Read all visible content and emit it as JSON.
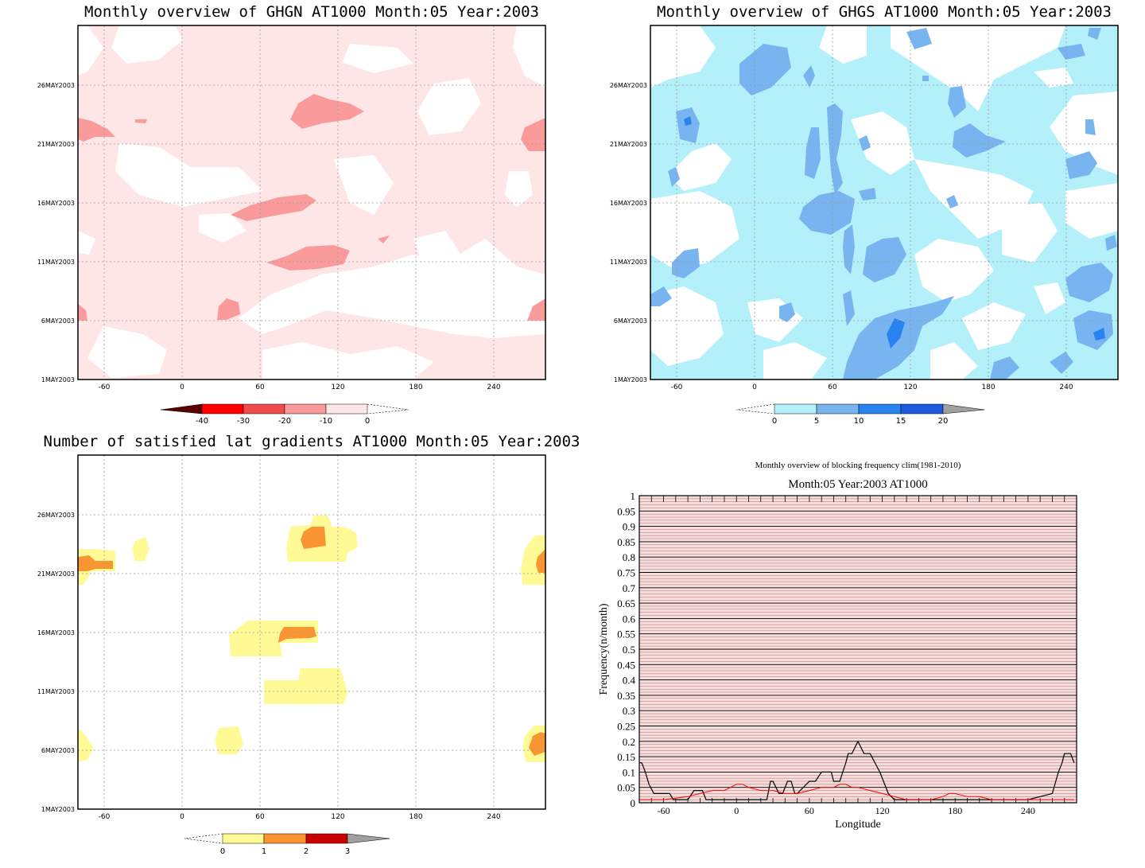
{
  "chart_data": [
    {
      "type": "heatmap",
      "title": "Monthly overview of GHGN AT1000 Month:05 Year:2003",
      "x_ticks": [
        "-60",
        "0",
        "60",
        "120",
        "180",
        "240"
      ],
      "y_ticks": [
        "1MAY2003",
        "6MAY2003",
        "11MAY2003",
        "16MAY2003",
        "21MAY2003",
        "26MAY2003"
      ],
      "colorbar": {
        "labels": [
          "-40",
          "-30",
          "-20",
          "-10",
          "0"
        ],
        "colors": [
          "#5a0000",
          "#ff0000",
          "#ef4b4b",
          "#fa9a9a",
          "#ffe6e6"
        ]
      },
      "regions": [
        {
          "level": "0 to -10",
          "color": "#ffe6e6"
        },
        {
          "level": "-10 to -20",
          "color": "#fa9a9a"
        }
      ]
    },
    {
      "type": "heatmap",
      "title": "Monthly overview of GHGS AT1000 Month:05 Year:2003",
      "x_ticks": [
        "-60",
        "0",
        "60",
        "120",
        "180",
        "240"
      ],
      "y_ticks": [
        "1MAY2003",
        "6MAY2003",
        "11MAY2003",
        "16MAY2003",
        "21MAY2003",
        "26MAY2003"
      ],
      "colorbar": {
        "labels": [
          "0",
          "5",
          "10",
          "15",
          "20"
        ],
        "colors": [
          "#b4f0fa",
          "#78b4f0",
          "#2882f0",
          "#1e5adc",
          "#a0a0a0"
        ]
      },
      "regions": [
        {
          "level": "0 to 5",
          "color": "#b4f0fa"
        },
        {
          "level": "5 to 10",
          "color": "#78b4f0"
        },
        {
          "level": "10 to 15",
          "color": "#2882f0"
        }
      ]
    },
    {
      "type": "heatmap",
      "title": "Number of satisfied lat gradients AT1000 Month:05 Year:2003",
      "x_ticks": [
        "-60",
        "0",
        "60",
        "120",
        "180",
        "240"
      ],
      "y_ticks": [
        "1MAY2003",
        "6MAY2003",
        "11MAY2003",
        "16MAY2003",
        "21MAY2003",
        "26MAY2003"
      ],
      "colorbar": {
        "labels": [
          "0",
          "1",
          "2",
          "3"
        ],
        "colors": [
          "#fffa96",
          "#fa9632",
          "#c80000",
          "#a0a0a0"
        ]
      },
      "regions": [
        {
          "level": "0 to 1",
          "color": "#fffa96"
        },
        {
          "level": "1 to 2",
          "color": "#fa9632"
        }
      ]
    },
    {
      "type": "line",
      "title": "Monthly overview of blocking frequency clim(1981-2010)",
      "subtitle": "Month:05 Year:2003  AT1000",
      "xlabel": "Longitude",
      "ylabel": "Frequency(n/month)",
      "xlim": [
        -80,
        280
      ],
      "ylim": [
        0,
        1
      ],
      "x_ticks": [
        "-60",
        "0",
        "60",
        "120",
        "180",
        "240"
      ],
      "y_ticks": [
        "0",
        "0.05",
        "0.1",
        "0.15",
        "0.2",
        "0.25",
        "0.3",
        "0.35",
        "0.4",
        "0.45",
        "0.5",
        "0.55",
        "0.6",
        "0.65",
        "0.7",
        "0.75",
        "0.8",
        "0.85",
        "0.9",
        "0.95",
        "1"
      ],
      "series": [
        {
          "color": "#000000",
          "x": [
            -80,
            -78,
            -75,
            -72,
            -68,
            -60,
            -55,
            -52,
            -40,
            -35,
            -30,
            -28,
            -25,
            -20,
            0,
            20,
            25,
            28,
            30,
            35,
            38,
            42,
            45,
            48,
            50,
            60,
            62,
            65,
            70,
            75,
            78,
            80,
            85,
            90,
            92,
            95,
            100,
            105,
            110,
            118,
            125,
            130,
            140,
            150,
            200,
            240,
            260,
            265,
            268,
            270,
            275,
            278
          ],
          "y": [
            0.13,
            0.13,
            0.1,
            0.06,
            0.03,
            0.03,
            0.03,
            0.01,
            0.01,
            0.04,
            0.04,
            0.04,
            0.01,
            0.01,
            0.01,
            0.01,
            0.01,
            0.07,
            0.07,
            0.03,
            0.03,
            0.07,
            0.07,
            0.03,
            0.03,
            0.07,
            0.07,
            0.07,
            0.1,
            0.1,
            0.1,
            0.07,
            0.07,
            0.13,
            0.16,
            0.16,
            0.2,
            0.16,
            0.16,
            0.1,
            0.03,
            0.01,
            0.01,
            0.01,
            0.01,
            0.01,
            0.03,
            0.1,
            0.13,
            0.16,
            0.16,
            0.13
          ]
        },
        {
          "color": "#ff0000",
          "x": [
            -80,
            -60,
            -40,
            -30,
            -20,
            -10,
            -5,
            0,
            5,
            10,
            20,
            30,
            40,
            50,
            60,
            70,
            80,
            85,
            90,
            95,
            100,
            110,
            120,
            130,
            140,
            150,
            160,
            170,
            175,
            180,
            190,
            200,
            210,
            220,
            230,
            240,
            250,
            260,
            270,
            278
          ],
          "y": [
            0.01,
            0.01,
            0.02,
            0.03,
            0.04,
            0.04,
            0.05,
            0.06,
            0.06,
            0.05,
            0.04,
            0.04,
            0.03,
            0.03,
            0.04,
            0.05,
            0.05,
            0.06,
            0.06,
            0.05,
            0.05,
            0.04,
            0.03,
            0.02,
            0.01,
            0.01,
            0.01,
            0.02,
            0.03,
            0.03,
            0.02,
            0.02,
            0.01,
            0.01,
            0.01,
            0.01,
            0.01,
            0.01,
            0.01,
            0.01
          ]
        }
      ]
    }
  ]
}
